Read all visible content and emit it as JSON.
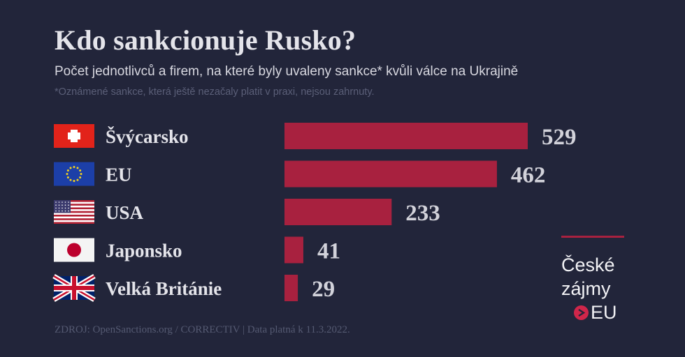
{
  "title": "Kdo sankcionuje Rusko?",
  "subtitle": "Počet jednotlivců a firem, na které byly uvaleny sankce* kvůli válce na Ukrajině",
  "note": "*Oznámené sankce, která ještě nezačaly platit v praxi, nejsou zahrnuty.",
  "source": "ZDROJ: OpenSanctions.org / CORRECTIV | Data platná k 11.3.2022.",
  "logo": {
    "line1": "České",
    "line2": "zájmy",
    "line3": "EU"
  },
  "colors": {
    "background": "#22253a",
    "bar": "#a8213f",
    "accent": "#d0264a"
  },
  "chart_data": {
    "type": "bar",
    "orientation": "horizontal",
    "categories": [
      "Švýcarsko",
      "EU",
      "USA",
      "Japonsko",
      "Velká Británie"
    ],
    "flags": [
      "switzerland-flag-icon",
      "eu-flag-icon",
      "usa-flag-icon",
      "japan-flag-icon",
      "uk-flag-icon"
    ],
    "values": [
      529,
      462,
      233,
      41,
      29
    ],
    "xlim": [
      0,
      529
    ],
    "grid": false,
    "legend": "none"
  }
}
